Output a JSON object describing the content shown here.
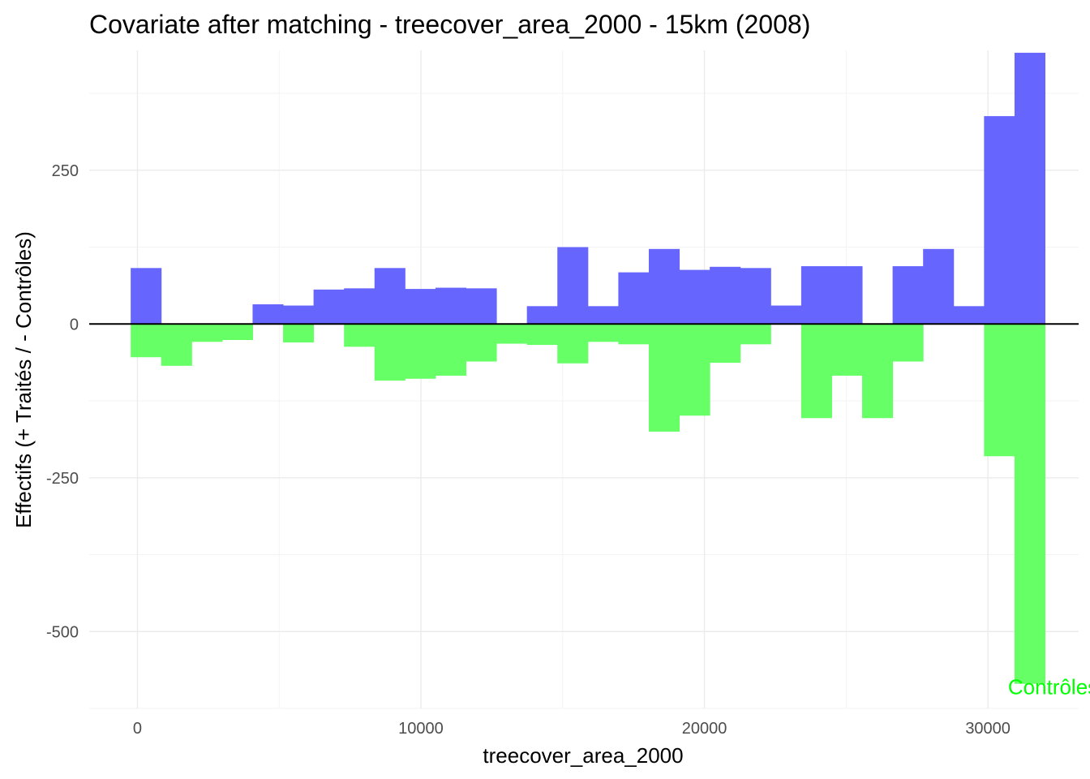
{
  "chart_data": {
    "type": "bar",
    "title": "Covariate after matching - treecover_area_2000 - 15km (2008)",
    "xlabel": "treecover_area_2000",
    "ylabel": "Effectifs (+ Traités / - Contrôles)",
    "xlim": [
      -1700,
      33200
    ],
    "ylim": [
      -625,
      445
    ],
    "x_ticks": [
      0,
      10000,
      20000,
      30000
    ],
    "x_tick_labels": [
      "0",
      "10000",
      "20000",
      "30000"
    ],
    "y_ticks": [
      250,
      0,
      -250,
      -500
    ],
    "y_tick_labels": [
      "250",
      "0",
      "-250",
      "-500"
    ],
    "x_minor_ticks": [
      5000,
      15000,
      25000
    ],
    "y_minor_ticks": [
      375,
      125,
      -125,
      -375,
      -625
    ],
    "bin_width": 1075,
    "bin_starts": [
      -237,
      838,
      1913,
      2988,
      4063,
      5138,
      6213,
      7288,
      8363,
      9438,
      10513,
      11588,
      12663,
      13738,
      14813,
      15888,
      16963,
      18038,
      19113,
      20188,
      21263,
      22338,
      23413,
      24488,
      25563,
      26638,
      27713,
      28788,
      29863,
      30938
    ],
    "series": [
      {
        "name": "Traités",
        "color": "#6666ff",
        "values": [
          91,
          0,
          0,
          0,
          32,
          30,
          56,
          58,
          91,
          57,
          59,
          58,
          0,
          29,
          125,
          29,
          84,
          122,
          88,
          93,
          91,
          30,
          94,
          94,
          0,
          94,
          122,
          29,
          338,
          441
        ]
      },
      {
        "name": "Contrôles",
        "color": "#66ff66",
        "values": [
          -54,
          -68,
          -29,
          -26,
          0,
          -30,
          0,
          -37,
          -92,
          -89,
          -84,
          -61,
          -32,
          -34,
          -64,
          -29,
          -33,
          -175,
          -149,
          -63,
          -33,
          0,
          -153,
          -84,
          -153,
          -61,
          0,
          0,
          -215,
          -585
        ]
      }
    ],
    "annotations": [
      {
        "text": "Contrôles",
        "color": "#00ff00",
        "x": 32300,
        "y": -590
      }
    ],
    "zero_line_color": "#000000",
    "grid": true,
    "legend": "none"
  }
}
